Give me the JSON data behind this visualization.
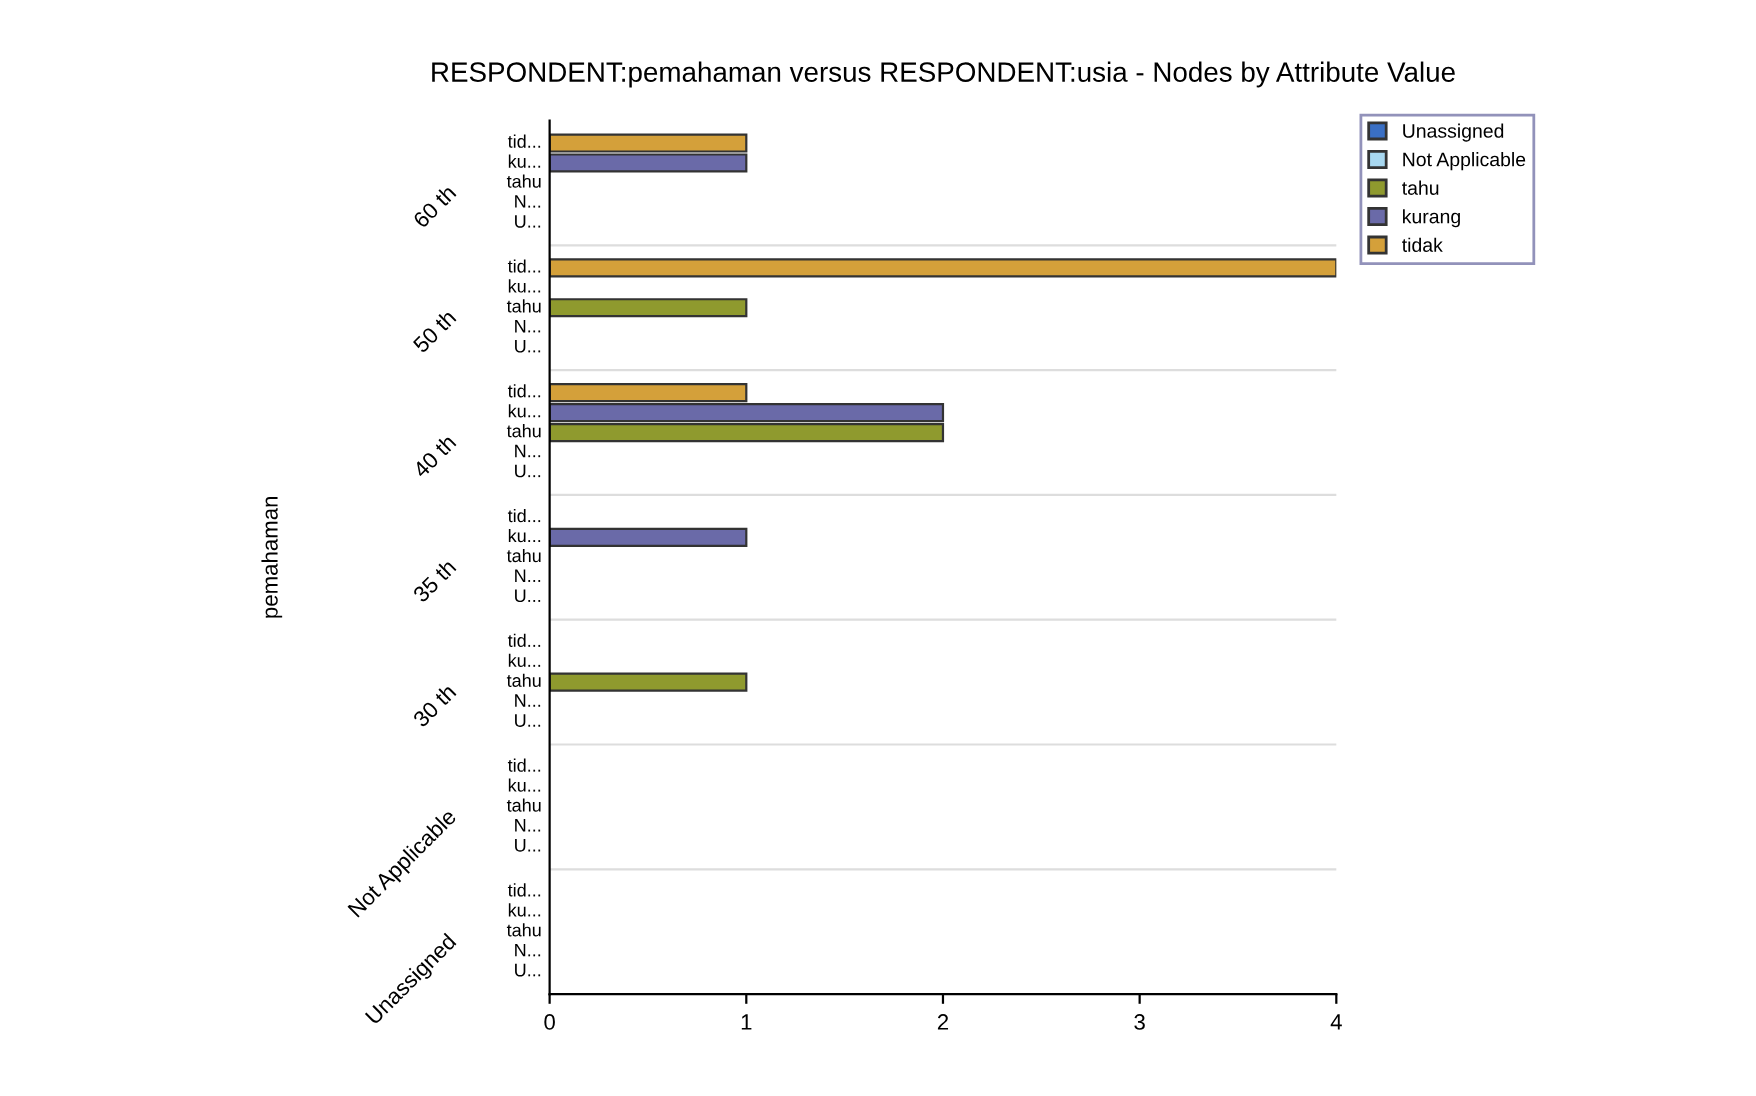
{
  "chart_data": {
    "type": "bar",
    "orientation": "horizontal",
    "title": "RESPONDENT:pemahaman versus RESPONDENT:usia - Nodes by Attribute Value",
    "ylabel": "pemahaman",
    "categories": [
      "60 th",
      "50 th",
      "40 th",
      "35 th",
      "30 th",
      "Not Applicable",
      "Unassigned"
    ],
    "series": [
      {
        "name": "Unassigned",
        "color": "#3a6fc4",
        "values": [
          null,
          null,
          null,
          null,
          null,
          null,
          null
        ]
      },
      {
        "name": "Not Applicable",
        "color": "#a8d8f0",
        "values": [
          null,
          null,
          null,
          null,
          null,
          null,
          null
        ]
      },
      {
        "name": "tahu",
        "color": "#8f9a2e",
        "values": [
          null,
          1,
          2,
          null,
          1,
          null,
          null
        ]
      },
      {
        "name": "kurang",
        "color": "#6a6aa8",
        "values": [
          1,
          null,
          2,
          1,
          null,
          null,
          null
        ]
      },
      {
        "name": "tidak",
        "color": "#d4a03a",
        "values": [
          1,
          4,
          1,
          null,
          null,
          null,
          null
        ]
      }
    ],
    "annotations": [
      "U...",
      "N...",
      "tahu",
      "ku...",
      "tid..."
    ],
    "xlim": [
      0,
      4
    ],
    "xticks": [
      0,
      1,
      2,
      3,
      4
    ],
    "grid": "y",
    "legend": "right"
  }
}
